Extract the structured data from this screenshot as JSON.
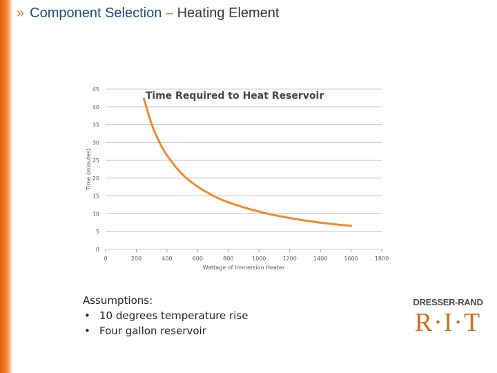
{
  "header": {
    "chevron": "»",
    "title_main": "Component Selection",
    "dash": "–",
    "title_sub": "Heating Element"
  },
  "colors": {
    "accent": "#e07a1f",
    "series": "#f08a2a",
    "title_blue": "#1f4e79"
  },
  "chart_data": {
    "type": "line",
    "title": "Time Required to Heat Reservoir",
    "xlabel": "Wattage of Immersion Heater",
    "ylabel": "Time (minutes)",
    "xlim": [
      0,
      1800
    ],
    "ylim": [
      0,
      45
    ],
    "x_ticks": [
      "0",
      "200",
      "400",
      "600",
      "800",
      "1000",
      "1200",
      "1400",
      "1600",
      "1800"
    ],
    "y_ticks": [
      "0",
      "5",
      "10",
      "15",
      "20",
      "25",
      "30",
      "35",
      "40",
      "45"
    ],
    "grid": true,
    "series": [
      {
        "x": [
          250,
          300,
          350,
          400,
          500,
          600,
          700,
          800,
          1000,
          1200,
          1400,
          1600
        ],
        "y": [
          42.3,
          35.2,
          30.2,
          26.4,
          21.1,
          17.6,
          15.1,
          13.2,
          10.6,
          8.8,
          7.5,
          6.6
        ]
      }
    ]
  },
  "assumptions": {
    "heading": "Assumptions:",
    "items": [
      "10 degrees temperature rise",
      "Four gallon reservoir"
    ]
  },
  "logo": {
    "company": "DRESSER-RAND",
    "initials": "R·I·T"
  }
}
